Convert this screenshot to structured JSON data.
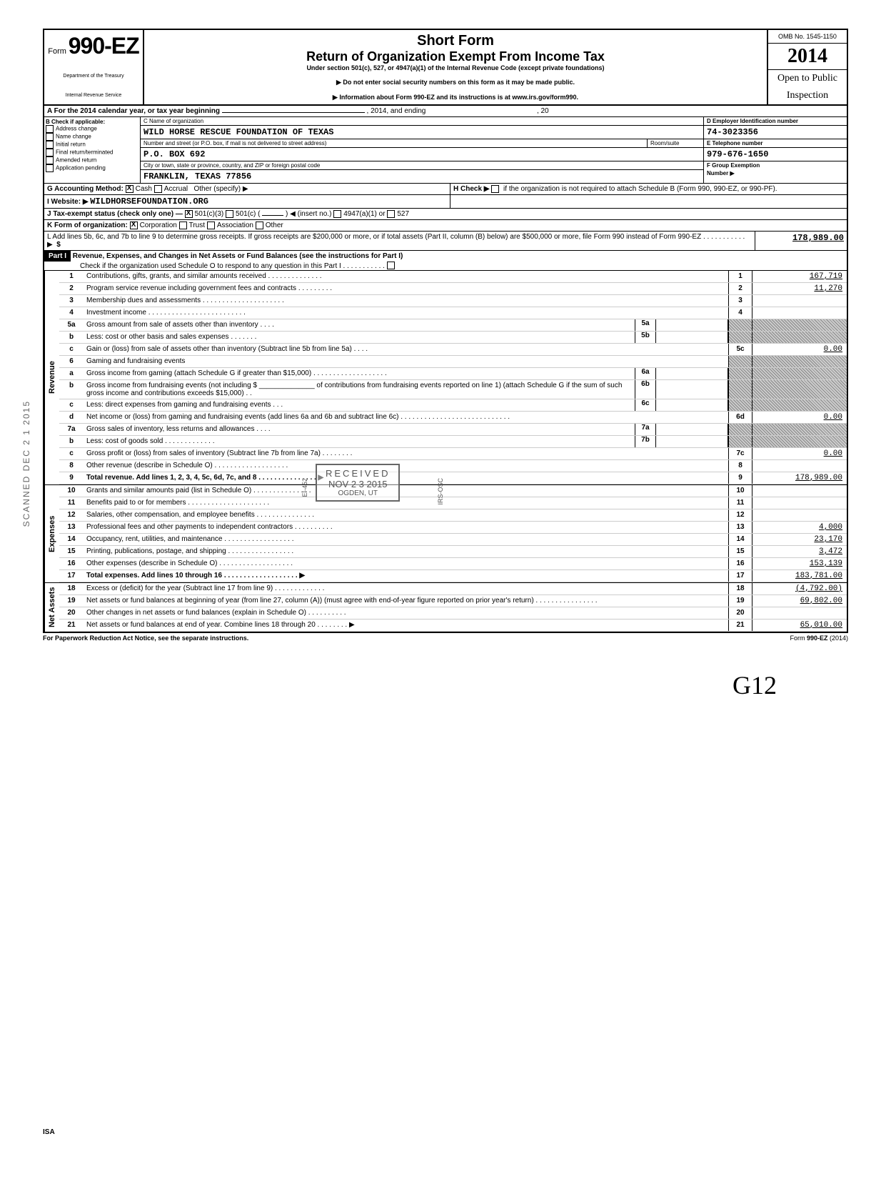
{
  "header": {
    "form_prefix": "Form",
    "form_number": "990-EZ",
    "dept1": "Department of the Treasury",
    "dept2": "Internal Revenue Service",
    "short_form": "Short Form",
    "title": "Return of Organization Exempt From Income Tax",
    "under": "Under section 501(c), 527, or 4947(a)(1) of the Internal Revenue Code (except private foundations)",
    "notice1": "Do not enter social security numbers on this form as it may be made public.",
    "notice2": "Information about Form 990-EZ and its instructions is at www.irs.gov/form990.",
    "omb": "OMB No. 1545-1150",
    "year": "2014",
    "open1": "Open to Public",
    "open2": "Inspection"
  },
  "rowA": {
    "label": "A  For the 2014 calendar year, or tax year beginning",
    "mid": ", 2014, and ending",
    "end": ", 20"
  },
  "rowB": {
    "title": "B  Check if applicable:",
    "items": [
      "Address change",
      "Name change",
      "Initial return",
      "Final return/terminated",
      "Amended return",
      "Application pending"
    ]
  },
  "rowC": {
    "label": "C  Name of organization",
    "name": "WILD HORSE RESCUE FOUNDATION OF TEXAS",
    "street_label": "Number and street (or P.O. box, if mail is not delivered to street address)",
    "room": "Room/suite",
    "street": "P.O. BOX 692",
    "city_label": "City or town, state or province, country, and ZIP or foreign postal code",
    "city": "FRANKLIN, TEXAS    77856"
  },
  "rowD": {
    "label": "D Employer Identification number",
    "ein": "74-3023356",
    "e_label": "E Telephone number",
    "phone": "979-676-1650",
    "f_label": "F Group Exemption",
    "f_label2": "Number ▶"
  },
  "rowG": {
    "label": "G  Accounting Method:",
    "cash": "Cash",
    "accrual": "Accrual",
    "other": "Other (specify) ▶"
  },
  "rowH": {
    "label": "H  Check ▶",
    "text": "if the organization is not required to attach Schedule B (Form 990, 990-EZ, or 990-PF)."
  },
  "rowI": {
    "label": "I   Website: ▶",
    "site": "WILDHORSEFOUNDATION.ORG"
  },
  "rowJ": {
    "label": "J  Tax-exempt status (check only one) —",
    "o1": "501(c)(3)",
    "o2": "501(c) (",
    "o2b": ") ◀ (insert no.)",
    "o3": "4947(a)(1) or",
    "o4": "527"
  },
  "rowK": {
    "label": "K  Form of organization:",
    "o1": "Corporation",
    "o2": "Trust",
    "o3": "Association",
    "o4": "Other"
  },
  "rowL": {
    "text": "L  Add lines 5b, 6c, and 7b to line 9 to determine gross receipts. If gross receipts are $200,000 or more, or if total assets (Part II, column (B) below) are $500,000 or more, file Form 990 instead of Form 990-EZ . . . . . . . . . . . ▶",
    "amt": "178,989.00"
  },
  "part1": {
    "label": "Part I",
    "title": "Revenue, Expenses, and Changes in Net Assets or Fund Balances (see the instructions for Part I)",
    "check": "Check if the organization used Schedule O to respond to any question in this Part I . . . . . . . . . . ."
  },
  "side_labels": {
    "revenue": "Revenue",
    "expenses": "Expenses",
    "netassets": "Net Assets"
  },
  "lines": [
    {
      "n": "1",
      "desc": "Contributions, gifts, grants, and similar amounts received . . . . . . . . . . . . . .",
      "box": "1",
      "amt": "167,719"
    },
    {
      "n": "2",
      "desc": "Program service revenue including government fees and contracts  . . . . . . . . .",
      "box": "2",
      "amt": "11,270"
    },
    {
      "n": "3",
      "desc": "Membership dues and assessments . . . . . . . . . . . . . . . . . . . . .",
      "box": "3",
      "amt": ""
    },
    {
      "n": "4",
      "desc": "Investment income  . . . . . . . . . . . . . . . . . . . . . . . . .",
      "box": "4",
      "amt": ""
    },
    {
      "n": "5a",
      "desc": "Gross amount from sale of assets other than inventory . . . .",
      "sub": "5a",
      "shaded": true
    },
    {
      "n": "b",
      "desc": "Less: cost or other basis and sales expenses . . . . . . .",
      "sub": "5b",
      "shaded": true
    },
    {
      "n": "c",
      "desc": "Gain or (loss) from sale of assets other than inventory (Subtract line 5b from line 5a) . . . .",
      "box": "5c",
      "amt": "0.00"
    },
    {
      "n": "6",
      "desc": "Gaming and fundraising events",
      "shaded": true
    },
    {
      "n": "a",
      "desc": "Gross income from gaming (attach Schedule G if greater than $15,000) . . . . . . . . . . . . . . . . . . .",
      "sub": "6a",
      "shaded": true
    },
    {
      "n": "b",
      "desc": "Gross income from fundraising events (not including  $ ______________ of contributions from fundraising events reported on line 1) (attach Schedule G if the sum of such gross income and contributions exceeds $15,000) . .",
      "sub": "6b",
      "shaded": true
    },
    {
      "n": "c",
      "desc": "Less: direct expenses from gaming and fundraising events . . .",
      "sub": "6c",
      "shaded": true
    },
    {
      "n": "d",
      "desc": "Net income or (loss) from gaming and fundraising events (add lines 6a and 6b and subtract line 6c)  . . . . . . . . . . . . . . . . . . . . . . . . . . . .",
      "box": "6d",
      "amt": "0.00"
    },
    {
      "n": "7a",
      "desc": "Gross sales of inventory, less returns and allowances . . . .",
      "sub": "7a",
      "shaded": true
    },
    {
      "n": "b",
      "desc": "Less: cost of goods sold  . . . . . . . . . . . . .",
      "sub": "7b",
      "shaded": true
    },
    {
      "n": "c",
      "desc": "Gross profit or (loss) from sales of inventory (Subtract line 7b from line 7a) . . . . . . . .",
      "box": "7c",
      "amt": "0.00"
    },
    {
      "n": "8",
      "desc": "Other revenue (describe in Schedule O) . . . . . . . . . . . . . . . . . . .",
      "box": "8",
      "amt": ""
    },
    {
      "n": "9",
      "desc": "Total revenue. Add lines 1, 2, 3, 4, 5c, 6d, 7c, and 8 . . . . . . . . . . . . . . . ▶",
      "box": "9",
      "amt": "178,989.00",
      "bold": true
    }
  ],
  "exp_lines": [
    {
      "n": "10",
      "desc": "Grants and similar amounts paid (list in Schedule O) . . . . . . . . . . . . . . .",
      "box": "10",
      "amt": ""
    },
    {
      "n": "11",
      "desc": "Benefits paid to or for members . . . . . . . . . . . . . . . . . . . . .",
      "box": "11",
      "amt": ""
    },
    {
      "n": "12",
      "desc": "Salaries, other compensation, and employee benefits . . . . . . . . . . . . . . .",
      "box": "12",
      "amt": ""
    },
    {
      "n": "13",
      "desc": "Professional fees and other payments to independent contractors . . . . . . . . . .",
      "box": "13",
      "amt": "4,000"
    },
    {
      "n": "14",
      "desc": "Occupancy, rent, utilities, and maintenance . . . . . . . . . . . . . . . . . .",
      "box": "14",
      "amt": "23,170"
    },
    {
      "n": "15",
      "desc": "Printing, publications, postage, and shipping . . . . . . . . . . . . . . . . .",
      "box": "15",
      "amt": "3,472"
    },
    {
      "n": "16",
      "desc": "Other expenses (describe in Schedule O) . . . . . . . . . . . . . . . . . . .",
      "box": "16",
      "amt": "153,139"
    },
    {
      "n": "17",
      "desc": "Total expenses. Add lines 10 through 16 . . . . . . . . . . . . . . . . . . . ▶",
      "box": "17",
      "amt": "183,781.00",
      "bold": true
    }
  ],
  "net_lines": [
    {
      "n": "18",
      "desc": "Excess or (deficit) for the year (Subtract line 17 from line 9) . . . . . . . . . . . . .",
      "box": "18",
      "amt": "(4,792.00)"
    },
    {
      "n": "19",
      "desc": "Net assets or fund balances at beginning of year (from line 27, column (A)) (must agree with end-of-year figure reported on prior year's return) . . . . . . . . . . . . . . . .",
      "box": "19",
      "amt": "69,802.00"
    },
    {
      "n": "20",
      "desc": "Other changes in net assets or fund balances (explain in Schedule O) . . . . . . . . . .",
      "box": "20",
      "amt": ""
    },
    {
      "n": "21",
      "desc": "Net assets or fund balances at end of year. Combine lines 18 through 20 . . . . . . . . ▶",
      "box": "21",
      "amt": "65,010.00"
    }
  ],
  "stamps": {
    "received": "RECEIVED",
    "date": "NOV 2 3 2015",
    "ogden": "OGDEN, UT",
    "side1": "EI-452",
    "side2": "IRS-OSC",
    "scan": "SCANNED  DEC 2 1 2015"
  },
  "footer": {
    "left": "For Paperwork Reduction Act Notice, see the separate instructions.",
    "right": "Form 990-EZ (2014)"
  },
  "handwrite": "G12",
  "isa": "ISA"
}
